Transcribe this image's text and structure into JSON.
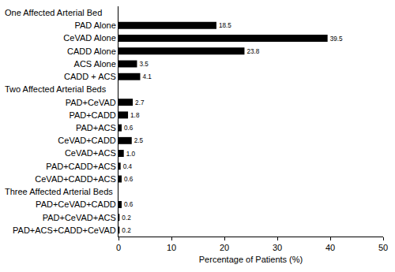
{
  "chart_data": {
    "type": "bar",
    "orientation": "horizontal",
    "x_label": "Percentage of Patients (%)",
    "categories": [
      "One Affected Arterial Bed",
      "PAD Alone",
      "CeVAD Alone",
      "CADD Alone",
      "ACS Alone",
      "CADD + ACS",
      "Two Affected Arterial Beds",
      "PAD+CeVAD",
      "PAD+CADD",
      "PAD+ACS",
      "CeVAD+CADD",
      "CeVAD+ACS",
      "PAD+CADD+ACS",
      "CeVAD+CADD+ACS",
      "Three Affected Arterial Beds",
      "PAD+CeVAD+CADD",
      "PAD+CeVAD+ACS",
      "PAD+ACS+CADD+CeVAD"
    ],
    "values": [
      null,
      18.5,
      39.5,
      23.8,
      3.5,
      4.1,
      null,
      2.7,
      1.8,
      0.6,
      2.5,
      1.0,
      0.4,
      0.6,
      null,
      0.6,
      0.2,
      0.2
    ],
    "value_labels": [
      null,
      "18.5",
      "39.5",
      "23.8",
      "3.5",
      "4.1",
      null,
      "2.7",
      "1.8",
      "0.6",
      "2.5",
      "1.0",
      "0.4",
      "0.6",
      null,
      "0.6",
      "0.2",
      "0.2"
    ],
    "color": "#000000",
    "xlim": [
      0,
      50
    ],
    "xticks": [
      0,
      10,
      20,
      30,
      40,
      50
    ],
    "grid": false,
    "data_labels": true
  }
}
